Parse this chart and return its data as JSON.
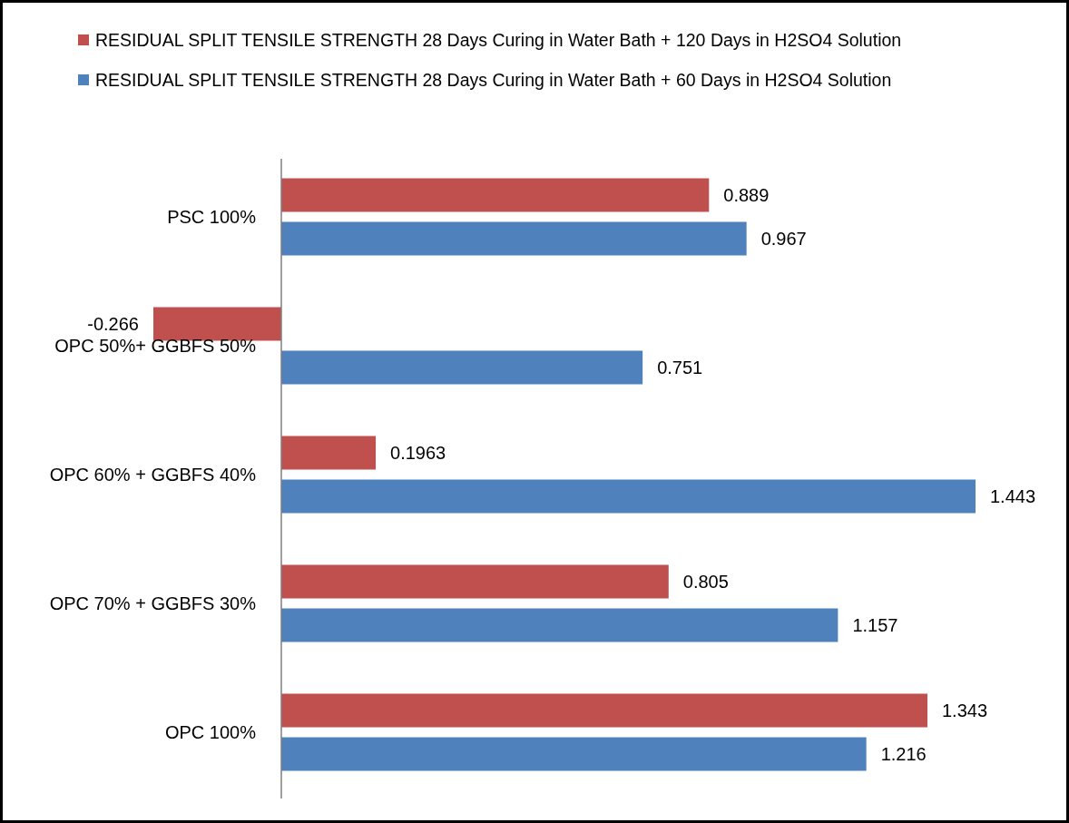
{
  "chart_data": {
    "type": "bar",
    "orientation": "horizontal",
    "data_labels": true,
    "legend": "top",
    "categories": [
      "PSC 100%",
      "OPC 50%+ GGBFS 50%",
      "OPC 60% + GGBFS 40%",
      "OPC 70% + GGBFS 30%",
      "OPC 100%"
    ],
    "series": [
      {
        "name": "RESIDUAL SPLIT TENSILE STRENGTH 28 Days Curing in Water Bath + 120 Days in H2SO4 Solution",
        "color": "#c0504d",
        "values": [
          0.889,
          -0.266,
          0.1963,
          0.805,
          1.343
        ]
      },
      {
        "name": "RESIDUAL SPLIT TENSILE STRENGTH 28 Days Curing in Water Bath + 60 Days in H2SO4 Solution",
        "color": "#4f81bd",
        "values": [
          0.967,
          0.751,
          1.443,
          1.157,
          1.216
        ]
      }
    ]
  }
}
